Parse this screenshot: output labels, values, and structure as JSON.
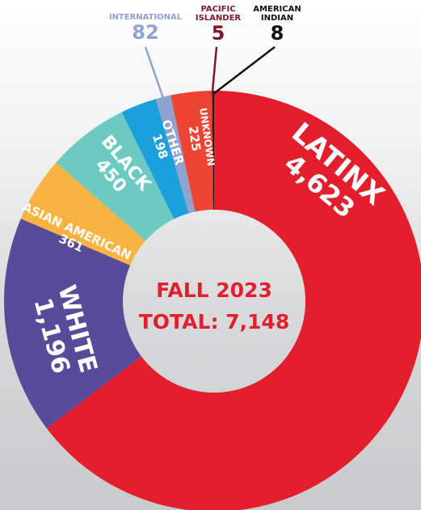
{
  "chart_data": {
    "type": "donut",
    "title": "FALL 2023",
    "subtitle": "TOTAL: 7,148",
    "categories": [
      "LATINX",
      "WHITE",
      "ASIAN AMERICAN",
      "BLACK",
      "OTHER",
      "INTERNATIONAL",
      "UNKNOWN",
      "PACIFIC ISLANDER",
      "AMERICAN INDIAN"
    ],
    "values": [
      4623,
      1196,
      361,
      450,
      198,
      82,
      225,
      5,
      8
    ],
    "value_labels": [
      "4,623",
      "1,196",
      "361",
      "450",
      "198",
      "82",
      "225",
      "5",
      "8"
    ],
    "colors": [
      "#e31e2d",
      "#574b9a",
      "#f9b342",
      "#6ccac3",
      "#1ba0dc",
      "#8fa3d0",
      "#ee4433",
      "#7a1a2b",
      "#111111"
    ]
  }
}
